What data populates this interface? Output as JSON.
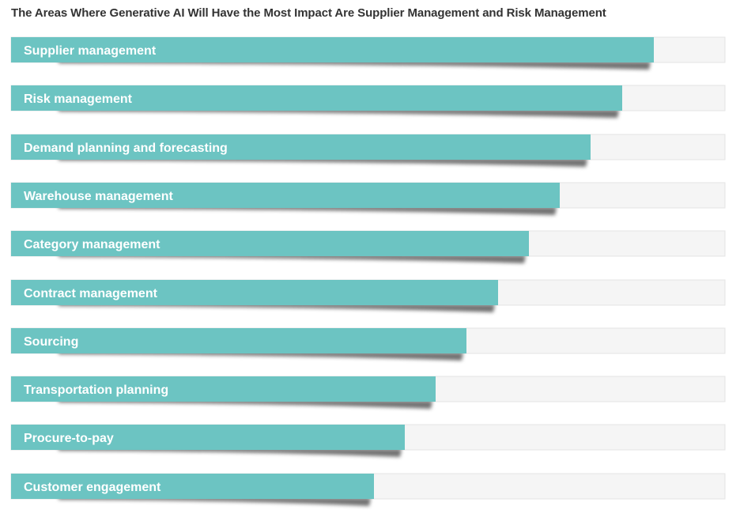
{
  "chart_data": {
    "type": "bar",
    "orientation": "horizontal",
    "title": "The Areas Where Generative AI Will Have the Most Impact Are Supplier Management and Risk Management",
    "categories": [
      "Supplier management",
      "Risk management",
      "Demand planning and forecasting",
      "Warehouse management",
      "Category management",
      "Contract management",
      "Sourcing",
      "Transportation planning",
      "Procure-to-pay",
      "Customer engagement"
    ],
    "values": [
      0.9,
      0.856,
      0.812,
      0.769,
      0.725,
      0.682,
      0.638,
      0.595,
      0.551,
      0.508
    ],
    "value_unit": "fraction of full track width",
    "xlim": [
      0,
      1
    ],
    "grid": false,
    "legend": "none",
    "colors": {
      "bar": "#6cc4c2",
      "track": "#f5f5f5",
      "track_border": "#e4e4e4",
      "label": "#ffffff",
      "title": "#333333"
    }
  }
}
